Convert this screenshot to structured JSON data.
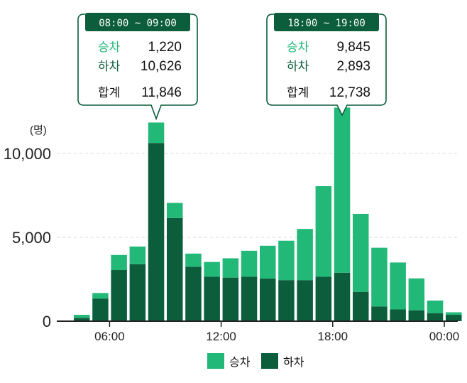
{
  "chart_data": {
    "type": "bar",
    "stacked": true,
    "unit": "(명)",
    "categories": [
      "04-05",
      "05-06",
      "06-07",
      "07-08",
      "08-09",
      "09-10",
      "10-11",
      "11-12",
      "12-13",
      "13-14",
      "14-15",
      "15-16",
      "16-17",
      "17-18",
      "18-19",
      "19-20",
      "20-21",
      "21-22",
      "22-23",
      "23-24",
      "00-01"
    ],
    "series": [
      {
        "name": "하차",
        "color": "#0b5d3b",
        "values": [
          200,
          1350,
          3050,
          3400,
          10626,
          6150,
          3250,
          2650,
          2600,
          2650,
          2550,
          2450,
          2450,
          2650,
          2893,
          1750,
          880,
          700,
          650,
          480,
          380
        ]
      },
      {
        "name": "승차",
        "color": "#22b978",
        "values": [
          180,
          330,
          900,
          1050,
          1220,
          900,
          780,
          880,
          1150,
          1550,
          1950,
          2350,
          3050,
          5400,
          9845,
          4650,
          3500,
          2800,
          1900,
          750,
          150
        ]
      }
    ],
    "yticks": [
      "0",
      "5,000",
      "10,000"
    ],
    "ylim": [
      0,
      12738
    ],
    "xticks": [
      {
        "label": "06:00",
        "pos": 2
      },
      {
        "label": "12:00",
        "pos": 8
      },
      {
        "label": "18:00",
        "pos": 14
      },
      {
        "label": "00:00",
        "pos": 20
      }
    ],
    "grid": "horizontal dashed",
    "legend": {
      "position": "bottom-center",
      "items": [
        {
          "label": "승차",
          "color": "#22b978"
        },
        {
          "label": "하차",
          "color": "#0b5d3b"
        }
      ]
    },
    "callouts": [
      {
        "title": "08:00 ~ 09:00",
        "bar": 4,
        "rows": [
          {
            "label": "승차",
            "value": "1,220",
            "color": "#22b978"
          },
          {
            "label": "하차",
            "value": "10,626",
            "color": "#0b5d3b"
          },
          {
            "label": "합계",
            "value": "11,846",
            "color": "#111111"
          }
        ]
      },
      {
        "title": "18:00 ~ 19:00",
        "bar": 14,
        "rows": [
          {
            "label": "승차",
            "value": "9,845",
            "color": "#22b978"
          },
          {
            "label": "하차",
            "value": "2,893",
            "color": "#0b5d3b"
          },
          {
            "label": "합계",
            "value": "12,738",
            "color": "#111111"
          }
        ]
      }
    ]
  }
}
